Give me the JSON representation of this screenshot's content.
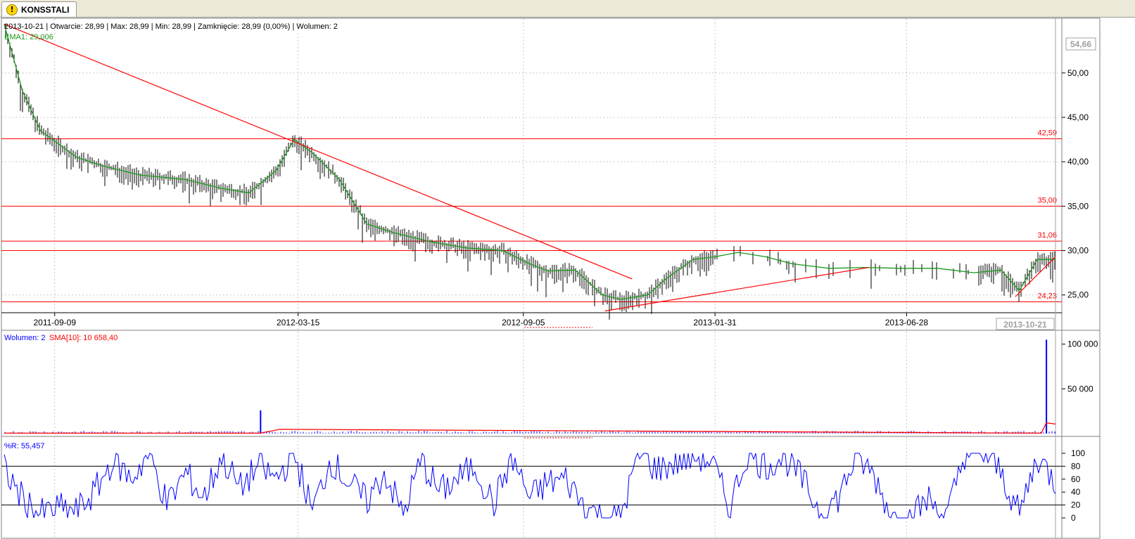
{
  "tab": {
    "label": "KONSSTALI",
    "icon": "warning-icon"
  },
  "header": {
    "info": "2013-10-21 | Otwarcie: 28,99 | Max: 28,99 | Min: 28,99 | Zamknięcie: 28,99 (0,00%) | Wolumen: 2",
    "ema_label": "EMA1: 29,006"
  },
  "volume_panel": {
    "label_volume": "Wolumen: 2",
    "label_sma": "SMA[10]: 10 658,40"
  },
  "wr_panel": {
    "label": "%R: 55,457"
  },
  "colors": {
    "bars": "#000000",
    "ema": "#1a9a1a",
    "levels": "#ff0000",
    "volume": "#0000ff",
    "sma": "#ff0000",
    "wr": "#0000ff",
    "grid": "#c8c8c8"
  },
  "chart_data": [
    {
      "type": "line",
      "title": "KONSSTALI",
      "x_ticks": [
        "2011-09-09",
        "2012-03-15",
        "2012-09-05",
        "2013-01-31",
        "2013-06-28"
      ],
      "x_current": "2013-10-21",
      "y_ticks": [
        "50,00",
        "45,00",
        "40,00",
        "35,00",
        "30,00",
        "25,00"
      ],
      "y_current": "54,66",
      "ylim": [
        23,
        56
      ],
      "grid": true,
      "horizontal_levels": [
        {
          "value": 42.59,
          "label": "42,59"
        },
        {
          "value": 35.0,
          "label": "35,00"
        },
        {
          "value": 31.06,
          "label": "31,06"
        },
        {
          "value": 30.0,
          "label": ""
        },
        {
          "value": 24.23,
          "label": "24,23"
        }
      ],
      "trendlines": [
        {
          "from": [
            "2011-08-01",
            55.5
          ],
          "to": [
            "2012-11-28",
            26.8
          ]
        },
        {
          "from": [
            "2012-11-07",
            23.2
          ],
          "to": [
            "2013-05-30",
            28.1
          ]
        },
        {
          "from": [
            "2013-09-20",
            24.8
          ],
          "to": [
            "2013-10-21",
            29.3
          ]
        }
      ],
      "series": [
        {
          "name": "EMA1",
          "x": [
            "2011-08-01",
            "2011-08-15",
            "2011-08-29",
            "2011-09-12",
            "2011-09-26",
            "2011-10-17",
            "2011-11-14",
            "2011-12-19",
            "2012-01-16",
            "2012-02-06",
            "2012-02-27",
            "2012-03-12",
            "2012-03-26",
            "2012-04-16",
            "2012-05-07",
            "2012-05-28",
            "2012-06-25",
            "2012-07-23",
            "2012-08-20",
            "2012-09-10",
            "2012-09-24",
            "2012-10-15",
            "2012-11-05",
            "2012-11-19",
            "2012-12-10",
            "2012-12-24",
            "2013-01-14",
            "2013-01-31",
            "2013-02-18",
            "2013-03-11",
            "2013-04-01",
            "2013-04-29",
            "2013-05-27",
            "2013-06-24",
            "2013-07-22",
            "2013-08-19",
            "2013-09-09",
            "2013-09-23",
            "2013-10-07",
            "2013-10-21"
          ],
          "values": [
            55.5,
            48,
            43.5,
            42,
            40.5,
            39.5,
            38.5,
            38,
            37,
            36.5,
            39,
            42.5,
            41,
            38,
            33,
            32,
            31,
            30.3,
            30,
            28.5,
            27.7,
            27.8,
            25,
            24.5,
            25,
            26.8,
            29,
            29.3,
            29.8,
            29.3,
            28.5,
            28,
            28.1,
            28,
            28,
            27.5,
            27.8,
            25.5,
            29,
            29
          ]
        }
      ]
    },
    {
      "type": "bar",
      "y_ticks": [
        "100 000",
        "50 000"
      ],
      "ylim": [
        0,
        110000
      ],
      "series": [
        {
          "name": "Wolumen",
          "x": [
            "2012-02-15",
            "2013-10-14"
          ],
          "values": [
            26000,
            105000
          ]
        },
        {
          "name": "SMA[10]",
          "x": [
            "2011-08-01",
            "2012-02-15",
            "2012-03-01",
            "2013-10-10",
            "2013-10-14",
            "2013-10-21"
          ],
          "values": [
            500,
            500,
            4800,
            500,
            12000,
            10658
          ]
        }
      ]
    },
    {
      "type": "line",
      "y_ticks": [
        "100",
        "80",
        "60",
        "40",
        "20",
        "0"
      ],
      "ylim": [
        0,
        100
      ],
      "horizontal_levels": [
        80,
        20
      ],
      "series": [
        {
          "name": "%R",
          "x": [
            "2011-08-01",
            "2011-08-15",
            "2011-08-29",
            "2011-09-12",
            "2011-09-26",
            "2011-10-10",
            "2011-10-24",
            "2011-11-07",
            "2011-11-21",
            "2011-12-05",
            "2011-12-19",
            "2012-01-02",
            "2012-01-16",
            "2012-01-30",
            "2012-02-13",
            "2012-02-27",
            "2012-03-12",
            "2012-03-26",
            "2012-04-09",
            "2012-04-23",
            "2012-05-07",
            "2012-05-21",
            "2012-06-04",
            "2012-06-18",
            "2012-07-02",
            "2012-07-16",
            "2012-07-30",
            "2012-08-13",
            "2012-08-27",
            "2012-09-10",
            "2012-09-24",
            "2012-10-08",
            "2012-10-22",
            "2012-11-05",
            "2012-11-19",
            "2012-12-03",
            "2012-12-17",
            "2012-12-31",
            "2013-01-14",
            "2013-01-28",
            "2013-02-11",
            "2013-02-25",
            "2013-03-11",
            "2013-03-25",
            "2013-04-08",
            "2013-04-22",
            "2013-05-06",
            "2013-05-20",
            "2013-06-03",
            "2013-06-17",
            "2013-07-01",
            "2013-07-15",
            "2013-07-29",
            "2013-08-12",
            "2013-08-26",
            "2013-09-09",
            "2013-09-23",
            "2013-10-07",
            "2013-10-21"
          ],
          "values": [
            75,
            30,
            5,
            15,
            10,
            40,
            90,
            60,
            100,
            20,
            70,
            30,
            95,
            45,
            80,
            60,
            100,
            10,
            90,
            55,
            25,
            70,
            5,
            90,
            40,
            60,
            80,
            20,
            95,
            30,
            55,
            60,
            20,
            0,
            0,
            100,
            75,
            85,
            95,
            90,
            15,
            100,
            80,
            95,
            60,
            10,
            30,
            95,
            65,
            0,
            0,
            30,
            0,
            100,
            100,
            70,
            5,
            95,
            55
          ]
        }
      ]
    }
  ]
}
